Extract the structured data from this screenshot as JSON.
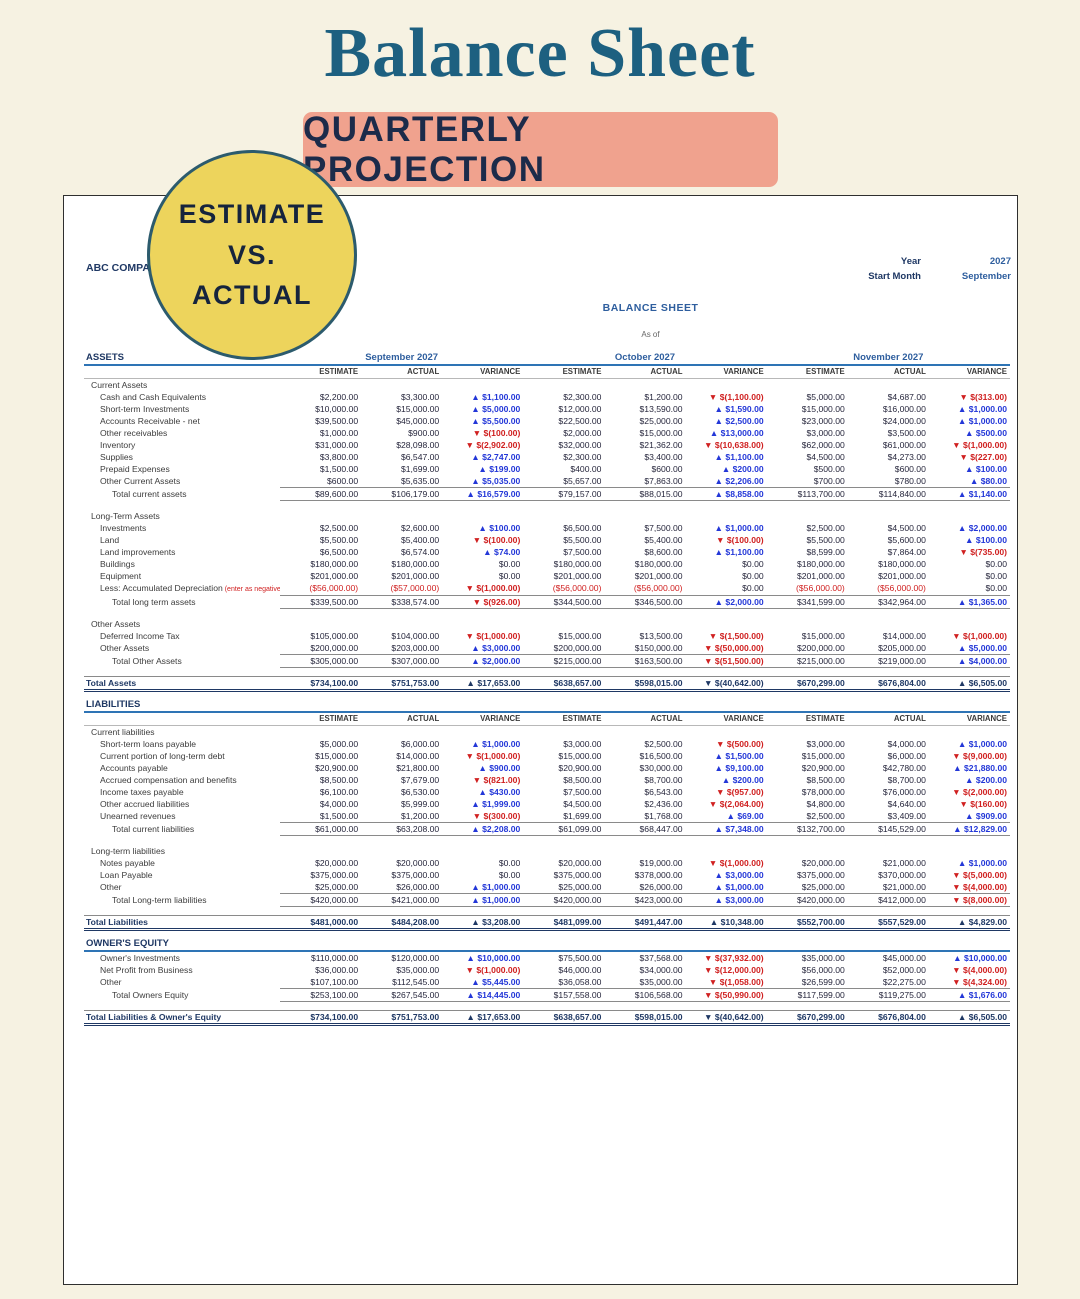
{
  "header": {
    "title": "Balance Sheet",
    "banner": "QUARTERLY PROJECTION",
    "badge": {
      "line1": "ESTIMATE",
      "line2": "VS.",
      "line3": "ACTUAL"
    }
  },
  "sheet": {
    "company": "ABC COMPANY",
    "year_label": "Year",
    "year_value": "2027",
    "start_month_label": "Start Month",
    "start_month_value": "September",
    "title": "BALANCE SHEET",
    "as_of": "As of"
  },
  "colors": {
    "background": "#f6f2e2",
    "title": "#1d6080",
    "banner_bg": "#f0a28e",
    "banner_text": "#1c2b4a",
    "badge_bg": "#edd45c",
    "badge_border": "#2c5b6d",
    "accent_blue": "#2e74b5",
    "navy": "#1f3864",
    "month_blue": "#2e5e9e",
    "variance_up": "#2337d8",
    "variance_down": "#d02020"
  },
  "columns": {
    "months": [
      "September 2027",
      "October 2027",
      "November 2027"
    ],
    "sub": [
      "ESTIMATE",
      "ACTUAL",
      "VARIANCE"
    ]
  },
  "rows": [
    {
      "t": "section",
      "label": "ASSETS",
      "months": true
    },
    {
      "t": "sub"
    },
    {
      "t": "group",
      "label": "Current Assets"
    },
    {
      "t": "item",
      "label": "Cash and Cash Equivalents",
      "c": [
        "$2,200.00",
        "$3,300.00",
        "▲ $1,100.00",
        "$2,300.00",
        "$1,200.00",
        "▼ $(1,100.00)",
        "$5,000.00",
        "$4,687.00",
        "▼ $(313.00)"
      ]
    },
    {
      "t": "item",
      "label": "Short-term Investments",
      "c": [
        "$10,000.00",
        "$15,000.00",
        "▲ $5,000.00",
        "$12,000.00",
        "$13,590.00",
        "▲ $1,590.00",
        "$15,000.00",
        "$16,000.00",
        "▲ $1,000.00"
      ]
    },
    {
      "t": "item",
      "label": "Accounts Receivable - net",
      "c": [
        "$39,500.00",
        "$45,000.00",
        "▲ $5,500.00",
        "$22,500.00",
        "$25,000.00",
        "▲ $2,500.00",
        "$23,000.00",
        "$24,000.00",
        "▲ $1,000.00"
      ]
    },
    {
      "t": "item",
      "label": "Other receivables",
      "c": [
        "$1,000.00",
        "$900.00",
        "▼ $(100.00)",
        "$2,000.00",
        "$15,000.00",
        "▲ $13,000.00",
        "$3,000.00",
        "$3,500.00",
        "▲ $500.00"
      ]
    },
    {
      "t": "item",
      "label": "Inventory",
      "c": [
        "$31,000.00",
        "$28,098.00",
        "▼ $(2,902.00)",
        "$32,000.00",
        "$21,362.00",
        "▼ $(10,638.00)",
        "$62,000.00",
        "$61,000.00",
        "▼ $(1,000.00)"
      ]
    },
    {
      "t": "item",
      "label": "Supplies",
      "c": [
        "$3,800.00",
        "$6,547.00",
        "▲ $2,747.00",
        "$2,300.00",
        "$3,400.00",
        "▲ $1,100.00",
        "$4,500.00",
        "$4,273.00",
        "▼ $(227.00)"
      ]
    },
    {
      "t": "item",
      "label": "Prepaid Expenses",
      "c": [
        "$1,500.00",
        "$1,699.00",
        "▲ $199.00",
        "$400.00",
        "$600.00",
        "▲ $200.00",
        "$500.00",
        "$600.00",
        "▲ $100.00"
      ]
    },
    {
      "t": "item",
      "label": "Other Current Assets",
      "c": [
        "$600.00",
        "$5,635.00",
        "▲ $5,035.00",
        "$5,657.00",
        "$7,863.00",
        "▲ $2,206.00",
        "$700.00",
        "$780.00",
        "▲ $80.00"
      ]
    },
    {
      "t": "total",
      "label": "Total current assets",
      "c": [
        "$89,600.00",
        "$106,179.00",
        "▲ $16,579.00",
        "$79,157.00",
        "$88,015.00",
        "▲ $8,858.00",
        "$113,700.00",
        "$114,840.00",
        "▲ $1,140.00"
      ]
    },
    {
      "t": "spacer"
    },
    {
      "t": "group",
      "label": "Long-Term Assets"
    },
    {
      "t": "item",
      "label": "Investments",
      "c": [
        "$2,500.00",
        "$2,600.00",
        "▲ $100.00",
        "$6,500.00",
        "$7,500.00",
        "▲ $1,000.00",
        "$2,500.00",
        "$4,500.00",
        "▲ $2,000.00"
      ]
    },
    {
      "t": "item",
      "label": "Land",
      "c": [
        "$5,500.00",
        "$5,400.00",
        "▼ $(100.00)",
        "$5,500.00",
        "$5,400.00",
        "▼ $(100.00)",
        "$5,500.00",
        "$5,600.00",
        "▲ $100.00"
      ]
    },
    {
      "t": "item",
      "label": "Land improvements",
      "c": [
        "$6,500.00",
        "$6,574.00",
        "▲ $74.00",
        "$7,500.00",
        "$8,600.00",
        "▲ $1,100.00",
        "$8,599.00",
        "$7,864.00",
        "▼ $(735.00)"
      ]
    },
    {
      "t": "item",
      "label": "Buildings",
      "c": [
        "$180,000.00",
        "$180,000.00",
        "$0.00",
        "$180,000.00",
        "$180,000.00",
        "$0.00",
        "$180,000.00",
        "$180,000.00",
        "$0.00"
      ]
    },
    {
      "t": "item",
      "label": "Equipment",
      "c": [
        "$201,000.00",
        "$201,000.00",
        "$0.00",
        "$201,000.00",
        "$201,000.00",
        "$0.00",
        "$201,000.00",
        "$201,000.00",
        "$0.00"
      ]
    },
    {
      "t": "item",
      "label": "Less: Accumulated Depreciation",
      "note": "(enter as negative)",
      "c": [
        "($56,000.00)",
        "($57,000.00)",
        "▼ $(1,000.00)",
        "($56,000.00)",
        "($56,000.00)",
        "$0.00",
        "($56,000.00)",
        "($56,000.00)",
        "$0.00"
      ]
    },
    {
      "t": "total",
      "label": "Total long term assets",
      "c": [
        "$339,500.00",
        "$338,574.00",
        "▼ $(926.00)",
        "$344,500.00",
        "$346,500.00",
        "▲ $2,000.00",
        "$341,599.00",
        "$342,964.00",
        "▲ $1,365.00"
      ]
    },
    {
      "t": "spacer"
    },
    {
      "t": "group",
      "label": "Other Assets"
    },
    {
      "t": "item",
      "label": "Deferred Income Tax",
      "c": [
        "$105,000.00",
        "$104,000.00",
        "▼ $(1,000.00)",
        "$15,000.00",
        "$13,500.00",
        "▼ $(1,500.00)",
        "$15,000.00",
        "$14,000.00",
        "▼ $(1,000.00)"
      ]
    },
    {
      "t": "item",
      "label": "Other Assets",
      "c": [
        "$200,000.00",
        "$203,000.00",
        "▲ $3,000.00",
        "$200,000.00",
        "$150,000.00",
        "▼ $(50,000.00)",
        "$200,000.00",
        "$205,000.00",
        "▲ $5,000.00"
      ]
    },
    {
      "t": "total",
      "label": "Total Other Assets",
      "c": [
        "$305,000.00",
        "$307,000.00",
        "▲ $2,000.00",
        "$215,000.00",
        "$163,500.00",
        "▼ $(51,500.00)",
        "$215,000.00",
        "$219,000.00",
        "▲ $4,000.00"
      ]
    },
    {
      "t": "spacer"
    },
    {
      "t": "grand",
      "label": "Total Assets",
      "c": [
        "$734,100.00",
        "$751,753.00",
        "▲ $17,653.00",
        "$638,657.00",
        "$598,015.00",
        "▼ $(40,642.00)",
        "$670,299.00",
        "$676,804.00",
        "▲ $6,505.00"
      ]
    },
    {
      "t": "spacer"
    },
    {
      "t": "section",
      "label": "LIABILITIES",
      "months": false
    },
    {
      "t": "sub"
    },
    {
      "t": "group",
      "label": "Current liabilities"
    },
    {
      "t": "item",
      "label": "Short-term loans payable",
      "c": [
        "$5,000.00",
        "$6,000.00",
        "▲ $1,000.00",
        "$3,000.00",
        "$2,500.00",
        "▼ $(500.00)",
        "$3,000.00",
        "$4,000.00",
        "▲ $1,000.00"
      ]
    },
    {
      "t": "item",
      "label": "Current portion of long-term debt",
      "c": [
        "$15,000.00",
        "$14,000.00",
        "▼ $(1,000.00)",
        "$15,000.00",
        "$16,500.00",
        "▲ $1,500.00",
        "$15,000.00",
        "$6,000.00",
        "▼ $(9,000.00)"
      ]
    },
    {
      "t": "item",
      "label": "Accounts payable",
      "c": [
        "$20,900.00",
        "$21,800.00",
        "▲ $900.00",
        "$20,900.00",
        "$30,000.00",
        "▲ $9,100.00",
        "$20,900.00",
        "$42,780.00",
        "▲ $21,880.00"
      ]
    },
    {
      "t": "item",
      "label": "Accrued compensation and benefits",
      "c": [
        "$8,500.00",
        "$7,679.00",
        "▼ $(821.00)",
        "$8,500.00",
        "$8,700.00",
        "▲ $200.00",
        "$8,500.00",
        "$8,700.00",
        "▲ $200.00"
      ]
    },
    {
      "t": "item",
      "label": "Income taxes payable",
      "c": [
        "$6,100.00",
        "$6,530.00",
        "▲ $430.00",
        "$7,500.00",
        "$6,543.00",
        "▼ $(957.00)",
        "$78,000.00",
        "$76,000.00",
        "▼ $(2,000.00)"
      ]
    },
    {
      "t": "item",
      "label": "Other accrued liabilities",
      "c": [
        "$4,000.00",
        "$5,999.00",
        "▲ $1,999.00",
        "$4,500.00",
        "$2,436.00",
        "▼ $(2,064.00)",
        "$4,800.00",
        "$4,640.00",
        "▼ $(160.00)"
      ]
    },
    {
      "t": "item",
      "label": "Unearned revenues",
      "c": [
        "$1,500.00",
        "$1,200.00",
        "▼ $(300.00)",
        "$1,699.00",
        "$1,768.00",
        "▲ $69.00",
        "$2,500.00",
        "$3,409.00",
        "▲ $909.00"
      ]
    },
    {
      "t": "total",
      "label": "Total current liabilities",
      "c": [
        "$61,000.00",
        "$63,208.00",
        "▲ $2,208.00",
        "$61,099.00",
        "$68,447.00",
        "▲ $7,348.00",
        "$132,700.00",
        "$145,529.00",
        "▲ $12,829.00"
      ]
    },
    {
      "t": "spacer"
    },
    {
      "t": "group",
      "label": "Long-term liabilities"
    },
    {
      "t": "item",
      "label": "Notes payable",
      "c": [
        "$20,000.00",
        "$20,000.00",
        "$0.00",
        "$20,000.00",
        "$19,000.00",
        "▼ $(1,000.00)",
        "$20,000.00",
        "$21,000.00",
        "▲ $1,000.00"
      ]
    },
    {
      "t": "item",
      "label": "Loan Payable",
      "c": [
        "$375,000.00",
        "$375,000.00",
        "$0.00",
        "$375,000.00",
        "$378,000.00",
        "▲ $3,000.00",
        "$375,000.00",
        "$370,000.00",
        "▼ $(5,000.00)"
      ]
    },
    {
      "t": "item",
      "label": "Other",
      "c": [
        "$25,000.00",
        "$26,000.00",
        "▲ $1,000.00",
        "$25,000.00",
        "$26,000.00",
        "▲ $1,000.00",
        "$25,000.00",
        "$21,000.00",
        "▼ $(4,000.00)"
      ]
    },
    {
      "t": "total",
      "label": "Total Long-term liabilities",
      "c": [
        "$420,000.00",
        "$421,000.00",
        "▲ $1,000.00",
        "$420,000.00",
        "$423,000.00",
        "▲ $3,000.00",
        "$420,000.00",
        "$412,000.00",
        "▼ $(8,000.00)"
      ]
    },
    {
      "t": "spacer"
    },
    {
      "t": "grand",
      "label": "Total Liabilities",
      "c": [
        "$481,000.00",
        "$484,208.00",
        "▲ $3,208.00",
        "$481,099.00",
        "$491,447.00",
        "▲ $10,348.00",
        "$552,700.00",
        "$557,529.00",
        "▲ $4,829.00"
      ]
    },
    {
      "t": "spacer"
    },
    {
      "t": "section",
      "label": "OWNER'S EQUITY",
      "months": false
    },
    {
      "t": "item",
      "label": "Owner's Investments",
      "c": [
        "$110,000.00",
        "$120,000.00",
        "▲ $10,000.00",
        "$75,500.00",
        "$37,568.00",
        "▼ $(37,932.00)",
        "$35,000.00",
        "$45,000.00",
        "▲ $10,000.00"
      ]
    },
    {
      "t": "item",
      "label": "Net Profit from Business",
      "c": [
        "$36,000.00",
        "$35,000.00",
        "▼ $(1,000.00)",
        "$46,000.00",
        "$34,000.00",
        "▼ $(12,000.00)",
        "$56,000.00",
        "$52,000.00",
        "▼ $(4,000.00)"
      ]
    },
    {
      "t": "item",
      "label": "Other",
      "c": [
        "$107,100.00",
        "$112,545.00",
        "▲ $5,445.00",
        "$36,058.00",
        "$35,000.00",
        "▼ $(1,058.00)",
        "$26,599.00",
        "$22,275.00",
        "▼ $(4,324.00)"
      ]
    },
    {
      "t": "total",
      "label": "Total Owners Equity",
      "c": [
        "$253,100.00",
        "$267,545.00",
        "▲ $14,445.00",
        "$157,558.00",
        "$106,568.00",
        "▼ $(50,990.00)",
        "$117,599.00",
        "$119,275.00",
        "▲ $1,676.00"
      ]
    },
    {
      "t": "spacer"
    },
    {
      "t": "grand",
      "label": "Total Liabilities & Owner's Equity",
      "c": [
        "$734,100.00",
        "$751,753.00",
        "▲ $17,653.00",
        "$638,657.00",
        "$598,015.00",
        "▼ $(40,642.00)",
        "$670,299.00",
        "$676,804.00",
        "▲ $6,505.00"
      ]
    }
  ]
}
